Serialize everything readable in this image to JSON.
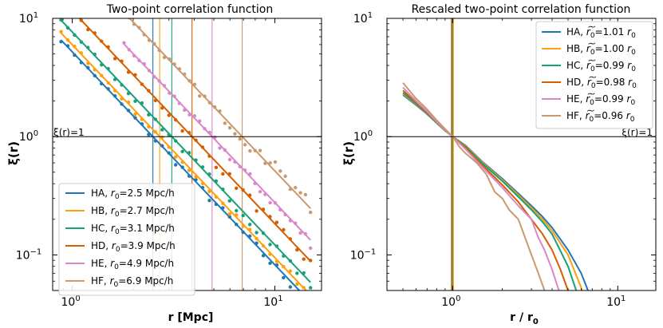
{
  "chart_data": [
    {
      "type": "scatter",
      "title": "Two-point correlation function",
      "xlabel": "r [Mpc]",
      "ylabel": "ξ(r)",
      "xscale": "log",
      "yscale": "log",
      "xlim": [
        0.8,
        17
      ],
      "ylim": [
        0.05,
        10
      ],
      "x_ticks": [
        {
          "v": 1,
          "b": "10",
          "e": "0"
        },
        {
          "v": 10,
          "b": "10",
          "e": "1"
        }
      ],
      "y_ticks": [
        {
          "v": 0.1,
          "b": "10",
          "e": "−1"
        },
        {
          "v": 1,
          "b": "10",
          "e": "0"
        },
        {
          "v": 10,
          "b": "10",
          "e": "1"
        }
      ],
      "hline": {
        "y": 1,
        "label": "ξ(r)=1"
      },
      "legend": {
        "position": "bottom-left"
      },
      "series": [
        {
          "key": "HA",
          "color": "#1f77b4",
          "r0": 2.5,
          "r0_label": "2.5",
          "unit": "Mpc/h",
          "x_start": 0.88,
          "x_end": 15
        },
        {
          "key": "HB",
          "color": "#ff9f0e",
          "r0": 2.7,
          "r0_label": "2.7",
          "unit": "Mpc/h",
          "x_start": 0.88,
          "x_end": 15
        },
        {
          "key": "HC",
          "color": "#17a07a",
          "r0": 3.1,
          "r0_label": "3.1",
          "unit": "Mpc/h",
          "x_start": 0.88,
          "x_end": 15
        },
        {
          "key": "HD",
          "color": "#d55e00",
          "r0": 3.9,
          "r0_label": "3.9",
          "unit": "Mpc/h",
          "x_start": 0.88,
          "x_end": 15
        },
        {
          "key": "HE",
          "color": "#d987c9",
          "r0": 4.9,
          "r0_label": "4.9",
          "unit": "Mpc/h",
          "x_start": 1.8,
          "x_end": 15
        },
        {
          "key": "HF",
          "color": "#c99a6e",
          "r0": 6.9,
          "r0_label": "6.9",
          "unit": "Mpc/h",
          "x_start": 1.8,
          "x_end": 15
        }
      ]
    },
    {
      "type": "line",
      "title": "Rescaled two-point correlation function",
      "xlabel": "r / r0",
      "ylabel": "ξ(r)",
      "xscale": "log",
      "yscale": "log",
      "xlim": [
        0.4,
        17
      ],
      "ylim": [
        0.05,
        10
      ],
      "x_ticks": [
        {
          "v": 1,
          "b": "10",
          "e": "0"
        },
        {
          "v": 10,
          "b": "10",
          "e": "1"
        }
      ],
      "y_ticks": [
        {
          "v": 0.1,
          "b": "10",
          "e": "−1"
        },
        {
          "v": 1,
          "b": "10",
          "e": "0"
        },
        {
          "v": 10,
          "b": "10",
          "e": "1"
        }
      ],
      "hline": {
        "y": 1,
        "label": "ξ(r)=1"
      },
      "legend": {
        "position": "top-right"
      },
      "series": [
        {
          "key": "HA",
          "color": "#1f77b4",
          "ratio": "1.01",
          "suffix": "r",
          "x": [
            0.5,
            0.6,
            0.7,
            0.8,
            0.9,
            1.0,
            1.2,
            1.5,
            2.0,
            2.5,
            3.0,
            3.5,
            4.0,
            5.0,
            6.0,
            6.6
          ],
          "y": [
            2.25,
            1.85,
            1.55,
            1.3,
            1.12,
            1.0,
            0.84,
            0.62,
            0.44,
            0.33,
            0.26,
            0.21,
            0.17,
            0.11,
            0.07,
            0.05
          ]
        },
        {
          "key": "HB",
          "color": "#ff9f0e",
          "ratio": "1.00",
          "suffix": "r",
          "x": [
            0.5,
            0.6,
            0.7,
            0.8,
            0.9,
            1.0,
            1.2,
            1.5,
            2.0,
            2.5,
            3.0,
            3.5,
            4.0,
            5.0,
            6.1
          ],
          "y": [
            2.3,
            1.88,
            1.57,
            1.31,
            1.13,
            1.0,
            0.83,
            0.61,
            0.43,
            0.32,
            0.25,
            0.2,
            0.16,
            0.1,
            0.05
          ]
        },
        {
          "key": "HC",
          "color": "#17a07a",
          "ratio": "0.99",
          "suffix": "r",
          "x": [
            0.5,
            0.6,
            0.7,
            0.8,
            0.9,
            1.0,
            1.2,
            1.5,
            2.0,
            2.5,
            3.0,
            3.5,
            4.0,
            5.0,
            5.6
          ],
          "y": [
            2.35,
            1.9,
            1.58,
            1.32,
            1.14,
            1.0,
            0.82,
            0.6,
            0.42,
            0.31,
            0.24,
            0.19,
            0.15,
            0.08,
            0.05
          ]
        },
        {
          "key": "HD",
          "color": "#d55e00",
          "ratio": "0.98",
          "suffix": "r",
          "x": [
            0.5,
            0.6,
            0.7,
            0.8,
            0.9,
            1.0,
            1.2,
            1.5,
            2.0,
            2.5,
            3.0,
            3.5,
            4.0,
            4.5,
            5.0
          ],
          "y": [
            2.45,
            1.95,
            1.6,
            1.33,
            1.14,
            1.0,
            0.8,
            0.58,
            0.39,
            0.28,
            0.2,
            0.15,
            0.11,
            0.075,
            0.05
          ]
        },
        {
          "key": "HE",
          "color": "#d987c9",
          "ratio": "0.99",
          "suffix": "r",
          "x": [
            0.5,
            0.6,
            0.7,
            0.8,
            0.9,
            1.0,
            1.2,
            1.5,
            2.0,
            2.5,
            3.0,
            3.3,
            3.6,
            4.0,
            4.4
          ],
          "y": [
            2.6,
            2.0,
            1.63,
            1.34,
            1.14,
            1.0,
            0.78,
            0.56,
            0.37,
            0.26,
            0.2,
            0.14,
            0.11,
            0.075,
            0.05
          ]
        },
        {
          "key": "HF",
          "color": "#c99a6e",
          "ratio": "0.96",
          "suffix": "r",
          "x": [
            0.5,
            0.6,
            0.7,
            0.8,
            0.9,
            1.0,
            1.1,
            1.2,
            1.4,
            1.6,
            1.8,
            2.0,
            2.2,
            2.5,
            2.8,
            3.0,
            3.3,
            3.6
          ],
          "y": [
            2.85,
            2.1,
            1.7,
            1.38,
            1.16,
            1.0,
            0.82,
            0.72,
            0.6,
            0.48,
            0.34,
            0.3,
            0.24,
            0.2,
            0.13,
            0.1,
            0.07,
            0.05
          ]
        }
      ],
      "vlines_x": [
        0.98,
        0.99,
        1.0,
        1.01
      ]
    }
  ]
}
